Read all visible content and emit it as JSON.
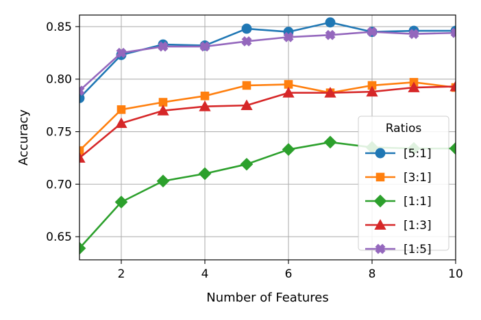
{
  "chart_data": {
    "type": "line",
    "title": "",
    "xlabel": "Number of Features",
    "ylabel": "Accuracy",
    "xlim": [
      1,
      10
    ],
    "ylim": [
      0.628,
      0.861
    ],
    "xticks": [
      2,
      4,
      6,
      8,
      10
    ],
    "yticks": [
      0.65,
      0.7,
      0.75,
      0.8,
      0.85
    ],
    "ytick_labels": [
      "0.65",
      "0.70",
      "0.75",
      "0.80",
      "0.85"
    ],
    "grid": true,
    "legend": {
      "title": "Ratios",
      "placement": "lower-right"
    },
    "x": [
      1,
      2,
      3,
      4,
      5,
      6,
      7,
      8,
      9,
      10
    ],
    "series": [
      {
        "name": "[5:1]",
        "color": "#1f77b4",
        "marker": "circle",
        "values": [
          0.782,
          0.823,
          0.833,
          0.832,
          0.848,
          0.845,
          0.854,
          0.845,
          0.846,
          0.846
        ]
      },
      {
        "name": "[3:1]",
        "color": "#ff7f0e",
        "marker": "square",
        "values": [
          0.732,
          0.771,
          0.778,
          0.784,
          0.794,
          0.795,
          0.787,
          0.794,
          0.797,
          0.792
        ]
      },
      {
        "name": "[1:1]",
        "color": "#2ca02c",
        "marker": "diamond",
        "values": [
          0.639,
          0.683,
          0.703,
          0.71,
          0.719,
          0.733,
          0.74,
          0.735,
          0.734,
          0.734
        ]
      },
      {
        "name": "[1:3]",
        "color": "#d62728",
        "marker": "triangle",
        "values": [
          0.725,
          0.758,
          0.77,
          0.774,
          0.775,
          0.787,
          0.787,
          0.788,
          0.792,
          0.793
        ]
      },
      {
        "name": "[1:5]",
        "color": "#9467bd",
        "marker": "plus",
        "values": [
          0.789,
          0.825,
          0.831,
          0.831,
          0.836,
          0.84,
          0.842,
          0.845,
          0.843,
          0.844
        ]
      }
    ]
  }
}
